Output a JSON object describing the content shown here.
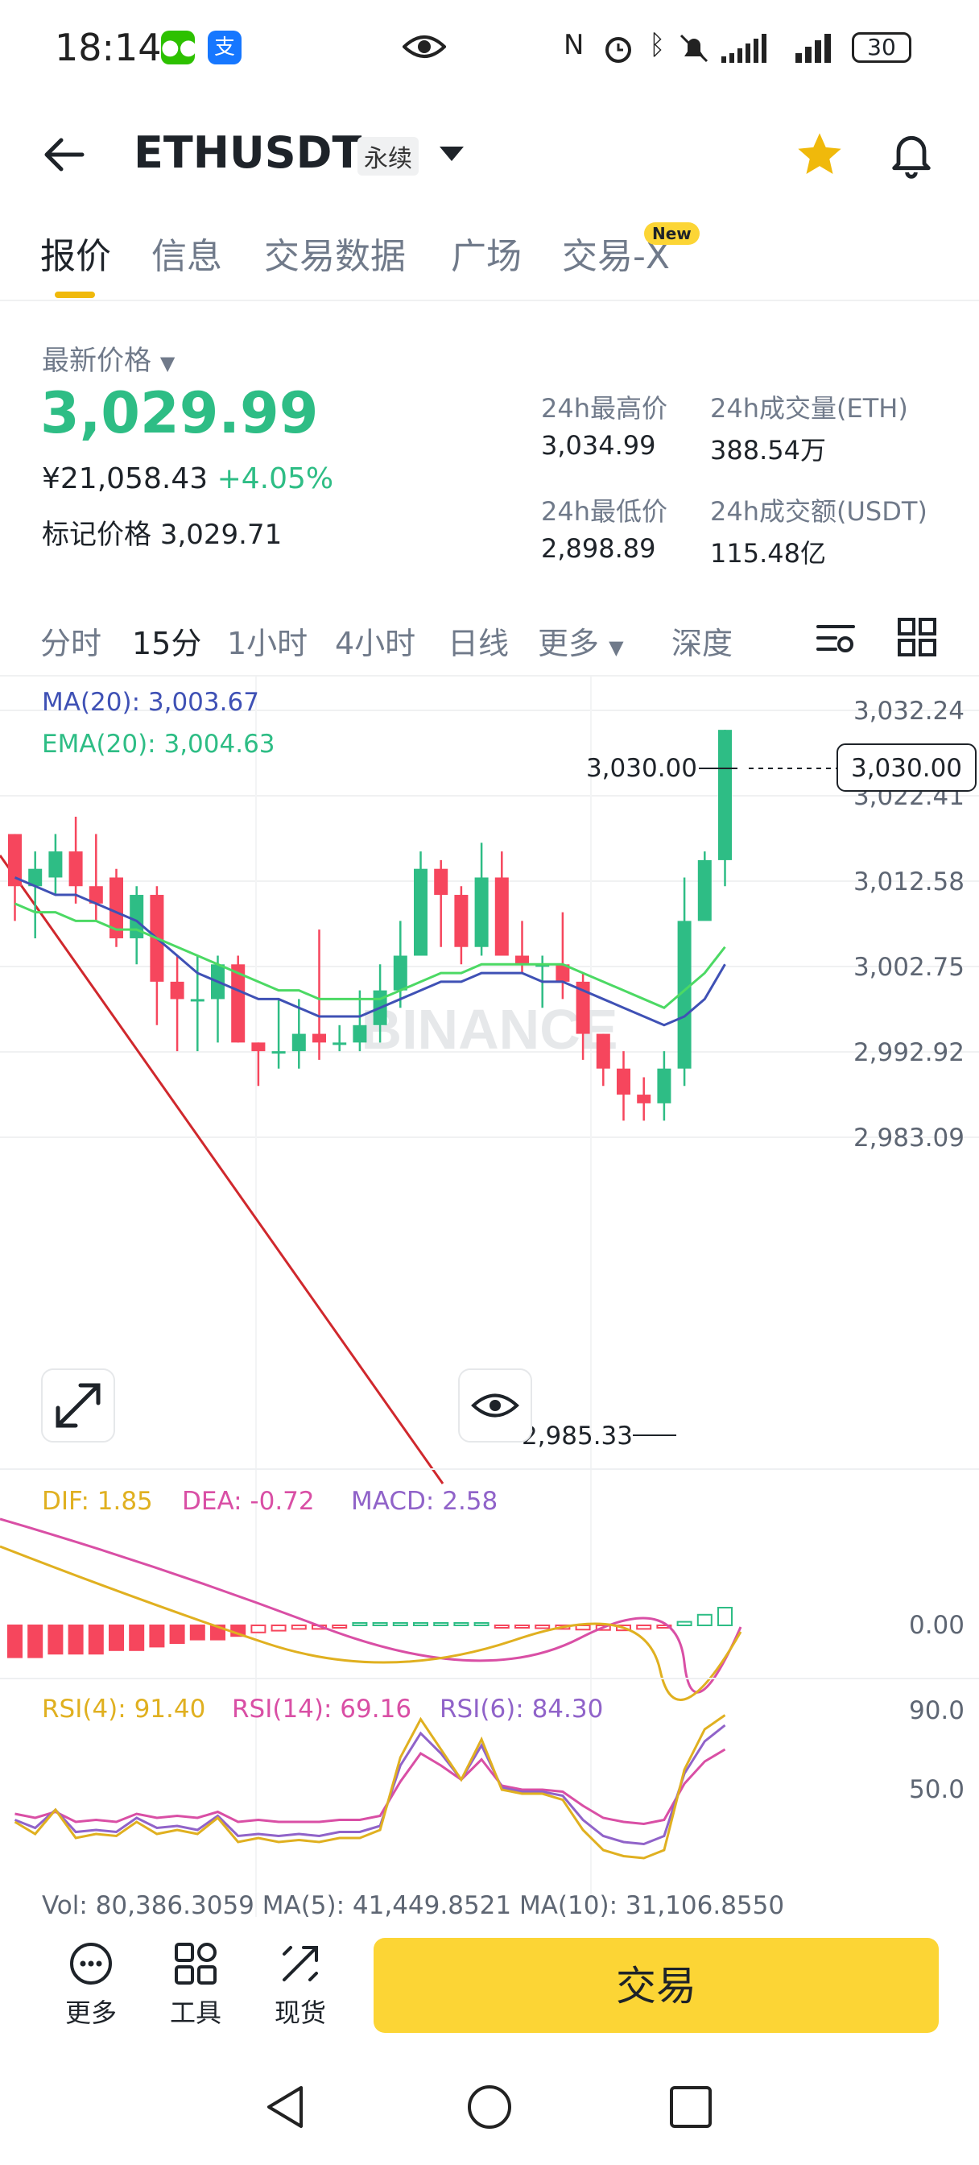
{
  "status_bar": {
    "time": "18:14",
    "battery": "30",
    "app1": "●●",
    "app2": "支"
  },
  "header": {
    "pair": "ETHUSDT",
    "contract_type": "永续"
  },
  "tabs": [
    {
      "label": "报价",
      "active": true
    },
    {
      "label": "信息"
    },
    {
      "label": "交易数据"
    },
    {
      "label": "广场"
    },
    {
      "label": "交易-X",
      "badge": "New"
    }
  ],
  "ticker": {
    "last_price_label": "最新价格",
    "last_price": "3,029.99",
    "cny_price": "¥21,058.43",
    "change_pct": "+4.05%",
    "mark_label": "标记价格",
    "mark_price": "3,029.71",
    "high_label": "24h最高价",
    "high": "3,034.99",
    "vol_eth_label": "24h成交量(ETH)",
    "vol_eth": "388.54万",
    "low_label": "24h最低价",
    "low": "2,898.89",
    "vol_usdt_label": "24h成交额(USDT)",
    "vol_usdt": "115.48亿"
  },
  "intervals": [
    {
      "label": "分时"
    },
    {
      "label": "15分",
      "active": true
    },
    {
      "label": "1小时"
    },
    {
      "label": "4小时"
    },
    {
      "label": "日线"
    },
    {
      "label": "更多"
    },
    {
      "label": "深度"
    }
  ],
  "chart": {
    "ma_label": "MA(20): 3,003.67",
    "ema_label": "EMA(20): 3,004.63",
    "watermark": "BINANCE",
    "y_ticks": [
      "3,032.24",
      "3,022.41",
      "3,012.58",
      "3,002.75",
      "2,992.92",
      "2,983.09"
    ],
    "current_price_tag": "3,030.00",
    "high_label": "3,030.00",
    "low_label": "2,985.33",
    "macd": {
      "dif": "DIF: 1.85",
      "dea": "DEA: -0.72",
      "macd": "MACD: 2.58",
      "zero": "0.00"
    },
    "rsi": {
      "rsi4": "RSI(4): 91.40",
      "rsi14": "RSI(14): 69.16",
      "rsi6": "RSI(6): 84.30",
      "t90": "90.0",
      "t50": "50.0"
    },
    "vol": "Vol: 80,386.3059    MA(5): 41,449.8521    MA(10): 31,106.8550",
    "colors": {
      "up": "#2ebd85",
      "down": "#f6465d",
      "ma": "#3f51b5",
      "ema": "#4cd964",
      "dif": "#e0b020",
      "dea": "#d94fa5",
      "macd": "#9063c9"
    }
  },
  "chart_data": {
    "type": "candlestick",
    "interval": "15分",
    "ylim": [
      2983.09,
      3032.24
    ],
    "candles": [
      [
        3018,
        3012,
        3018,
        3008
      ],
      [
        3012,
        3014,
        3016,
        3006
      ],
      [
        3013,
        3016,
        3018,
        3011
      ],
      [
        3016,
        3012,
        3020,
        3010
      ],
      [
        3012,
        3010,
        3018,
        3008
      ],
      [
        3013,
        3006,
        3014,
        3005
      ],
      [
        3006,
        3011,
        3012,
        3003
      ],
      [
        3011,
        3001,
        3012,
        2996
      ],
      [
        3001,
        2999,
        3004,
        2993
      ],
      [
        2999,
        2999,
        3004,
        2993
      ],
      [
        2999,
        3003,
        3004,
        2994
      ],
      [
        3003,
        2994,
        3004,
        2994
      ],
      [
        2994,
        2993,
        2994,
        2989
      ],
      [
        2993,
        2993,
        2999,
        2991
      ],
      [
        2993,
        2995,
        2999,
        2991
      ],
      [
        2995,
        2994,
        3007,
        2992
      ],
      [
        2994,
        2994,
        2996,
        2993
      ],
      [
        2994,
        2996,
        3000,
        2993
      ],
      [
        2996,
        3000,
        3003,
        2994
      ],
      [
        3000,
        3004,
        3008,
        2998
      ],
      [
        3004,
        3014,
        3016,
        3004
      ],
      [
        3014,
        3011,
        3015,
        3005
      ],
      [
        3011,
        3005,
        3012,
        3003
      ],
      [
        3005,
        3013,
        3017,
        3004
      ],
      [
        3013,
        3004,
        3016,
        3004
      ],
      [
        3004,
        3003,
        3008,
        3002
      ],
      [
        3003,
        3003,
        3004,
        2998
      ],
      [
        3003,
        3001,
        3009,
        2999
      ],
      [
        3001,
        2995,
        3002,
        2992
      ],
      [
        2995,
        2991,
        2995,
        2989
      ],
      [
        2991,
        2988,
        2993,
        2985
      ],
      [
        2988,
        2987,
        2990,
        2985
      ],
      [
        2987,
        2991,
        2993,
        2985
      ],
      [
        2991,
        3008,
        3013,
        2989
      ],
      [
        3008,
        3015,
        3016,
        3010
      ],
      [
        3015,
        3030,
        3030,
        3012
      ]
    ],
    "ma20": [
      3013,
      3012,
      3011,
      3011,
      3010,
      3009,
      3008,
      3006,
      3004,
      3002,
      3001,
      3000,
      2999,
      2999,
      2998,
      2997,
      2997,
      2997,
      2998,
      2999,
      3000,
      3001,
      3001,
      3002,
      3002,
      3002,
      3001,
      3001,
      3000,
      2999,
      2998,
      2997,
      2996,
      2997,
      2999,
      3003
    ],
    "ema20": [
      3010,
      3009,
      3009,
      3008,
      3008,
      3007,
      3007,
      3006,
      3005,
      3004,
      3003,
      3002,
      3001,
      3000,
      3000,
      2999,
      2999,
      2999,
      2999,
      3000,
      3001,
      3002,
      3002,
      3003,
      3003,
      3003,
      3003,
      3003,
      3002,
      3001,
      3000,
      2999,
      2998,
      3000,
      3002,
      3005
    ],
    "macd_hist": [
      -0.9,
      -0.9,
      -0.8,
      -0.8,
      -0.8,
      -0.7,
      -0.7,
      -0.6,
      -0.5,
      -0.4,
      -0.4,
      -0.3,
      -0.2,
      -0.15,
      -0.1,
      -0.1,
      -0.05,
      0.03,
      0.05,
      0.05,
      0.05,
      0.05,
      0.04,
      0.03,
      -0.02,
      -0.05,
      -0.08,
      -0.1,
      -0.12,
      -0.13,
      -0.14,
      -0.1,
      -0.06,
      0.1,
      0.3,
      0.5
    ],
    "rsi4": [
      34,
      28,
      40,
      26,
      28,
      27,
      34,
      28,
      30,
      28,
      36,
      24,
      26,
      24,
      25,
      24,
      26,
      26,
      30,
      66,
      85,
      70,
      55,
      75,
      50,
      48,
      48,
      45,
      30,
      20,
      17,
      16,
      20,
      60,
      80,
      87
    ],
    "rsi14": [
      38,
      36,
      39,
      34,
      35,
      34,
      38,
      36,
      37,
      36,
      39,
      34,
      35,
      34,
      34,
      34,
      35,
      35,
      37,
      54,
      68,
      62,
      55,
      65,
      52,
      50,
      50,
      49,
      42,
      36,
      34,
      33,
      35,
      53,
      64,
      70
    ],
    "rsi6": [
      35,
      31,
      40,
      29,
      30,
      29,
      36,
      31,
      32,
      30,
      37,
      27,
      28,
      27,
      28,
      27,
      29,
      29,
      32,
      62,
      78,
      68,
      55,
      72,
      51,
      49,
      49,
      47,
      35,
      27,
      24,
      23,
      27,
      58,
      74,
      82
    ]
  },
  "bottom_bar": {
    "more": "更多",
    "tools": "工具",
    "spot": "现货",
    "trade": "交易"
  }
}
